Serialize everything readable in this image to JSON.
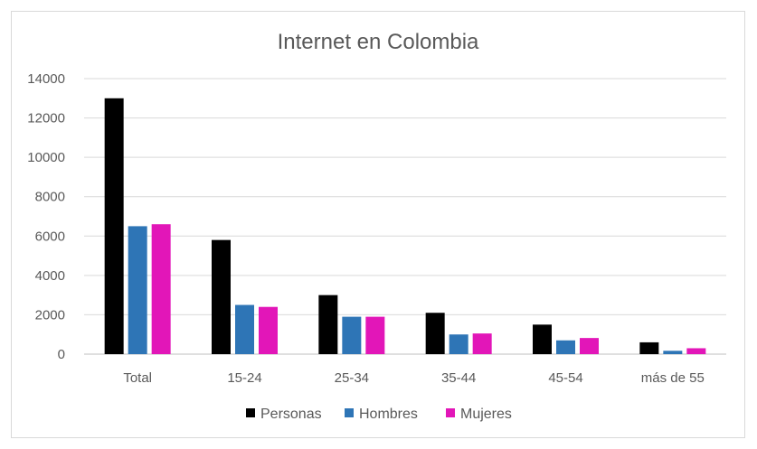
{
  "chart_data": {
    "type": "bar",
    "title": "Internet en Colombia",
    "categories": [
      "Total",
      "15-24",
      "25-34",
      "35-44",
      "45-54",
      "más de 55"
    ],
    "series": [
      {
        "name": "Personas",
        "color": "#000000",
        "values": [
          13000,
          5800,
          3000,
          2100,
          1500,
          600
        ]
      },
      {
        "name": "Hombres",
        "color": "#2e75b6",
        "values": [
          6500,
          2500,
          1900,
          1000,
          700,
          170
        ]
      },
      {
        "name": "Mujeres",
        "color": "#e216b8",
        "values": [
          6600,
          2400,
          1900,
          1050,
          820,
          300
        ]
      }
    ],
    "ylim": [
      0,
      14000
    ],
    "yticks": [
      0,
      2000,
      4000,
      6000,
      8000,
      10000,
      12000,
      14000
    ],
    "grid": true,
    "legend": "bottom"
  }
}
